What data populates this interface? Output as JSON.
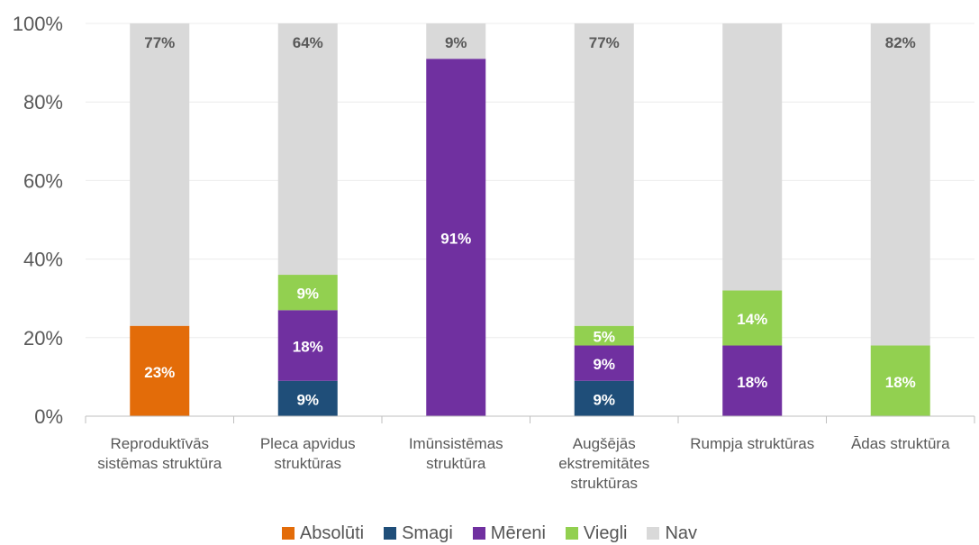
{
  "chart_data": {
    "type": "bar",
    "stacked": true,
    "title": "",
    "xlabel": "",
    "ylabel": "",
    "ylim": [
      0,
      100
    ],
    "y_ticks": [
      "0%",
      "20%",
      "40%",
      "60%",
      "80%",
      "100%"
    ],
    "grid": true,
    "legend_position": "bottom",
    "categories": [
      [
        "Reproduktīvās",
        "sistēmas struktūra"
      ],
      [
        "Pleca apvidus",
        "struktūras"
      ],
      [
        "Imūnsistēmas",
        "struktūra"
      ],
      [
        "Augšējās",
        "ekstremitātes",
        "struktūras"
      ],
      [
        "Rumpja struktūras"
      ],
      [
        "Ādas struktūra"
      ]
    ],
    "series": [
      {
        "name": "Absolūti",
        "color": "#E36C09",
        "values": [
          23,
          0,
          0,
          0,
          0,
          0
        ],
        "labels": [
          "23%",
          "",
          "",
          "",
          "",
          ""
        ]
      },
      {
        "name": "Smagi",
        "color": "#1F4E79",
        "values": [
          0,
          9,
          0,
          9,
          0,
          0
        ],
        "labels": [
          "",
          "9%",
          "",
          "9%",
          "",
          ""
        ]
      },
      {
        "name": "Mēreni",
        "color": "#7030A0",
        "values": [
          0,
          18,
          91,
          9,
          18,
          0
        ],
        "labels": [
          "",
          "18%",
          "91%",
          "9%",
          "18%",
          ""
        ]
      },
      {
        "name": "Viegli",
        "color": "#92D050",
        "values": [
          0,
          9,
          0,
          5,
          14,
          18
        ],
        "labels": [
          "",
          "9%",
          "",
          "5%",
          "14%",
          "18%"
        ]
      },
      {
        "name": "Nav",
        "color": "#D9D9D9",
        "values": [
          77,
          64,
          9,
          77,
          68,
          82
        ],
        "labels": [
          "77%",
          "64%",
          "9%",
          "77%",
          "",
          "82%"
        ]
      }
    ]
  }
}
